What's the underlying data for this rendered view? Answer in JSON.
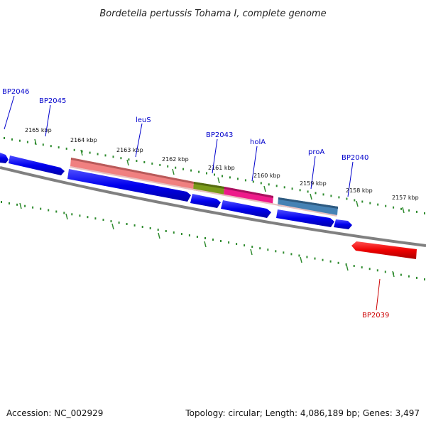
{
  "title": "Bordetella pertussis Tohama I, complete genome",
  "footer": {
    "accession": "Accession: NC_002929",
    "summary": "Topology: circular; Length: 4,086,189 bp; Genes: 3,497"
  },
  "tick_labels": [
    "2165 kbp",
    "2164 kbp",
    "2163 kbp",
    "2162 kbp",
    "2161 kbp",
    "2160 kbp",
    "2159 kbp",
    "2158 kbp",
    "2157 kbp"
  ],
  "gene_labels": {
    "bp2046": "BP2046",
    "bp2045": "BP2045",
    "leus": "leuS",
    "bp2043": "BP2043",
    "hola": "holA",
    "proa": "proA",
    "bp2040": "BP2040",
    "bp2039": "BP2039"
  },
  "colors": {
    "backbone": "#808080",
    "forward_cds": "#0000ee",
    "reverse_cds": "#ee0000",
    "ticks": "#2e8b2e",
    "leus_feature": "#f08080",
    "bp2043_feature": "#7a9a1a",
    "hola_feature": "#ee1a8a",
    "proa_feature": "#4682b4",
    "label_forward": "#0000cc",
    "label_reverse": "#cc0000"
  }
}
